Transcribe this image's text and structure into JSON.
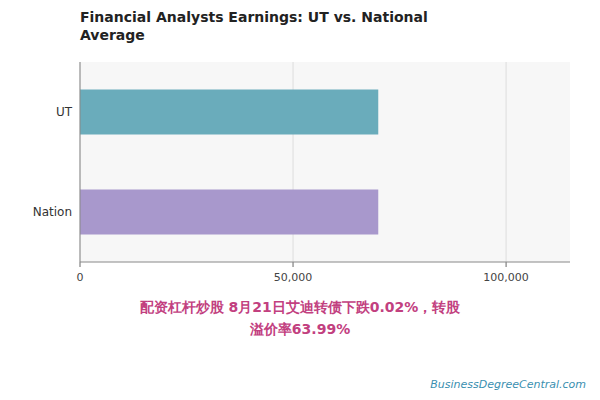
{
  "chart_data": {
    "type": "bar",
    "orientation": "horizontal",
    "title": "Financial Analysts Earnings: UT vs. National\nAverage",
    "categories": [
      "UT",
      "Nation"
    ],
    "values": [
      70000,
      70000
    ],
    "colors": [
      "#6aacbb",
      "#a898cc"
    ],
    "xlim": [
      0,
      115000
    ],
    "xticks": [
      0,
      {
        "value": 50000,
        "label": "50,000"
      },
      {
        "value": 100000,
        "label": "100,000"
      }
    ],
    "grid": true,
    "annotations": [
      "配资杠杆炒股 8月21日艾迪转债下跌0.02%，转股",
      "溢价率63.99%",
      "BusinessDegreeCentral.com"
    ]
  }
}
